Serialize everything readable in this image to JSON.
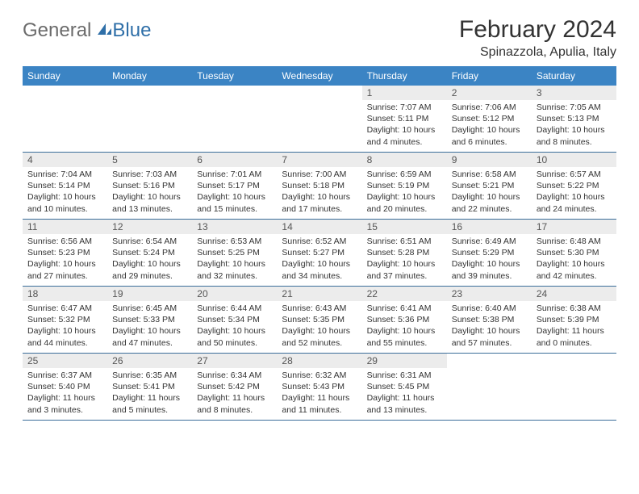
{
  "brand": {
    "general": "General",
    "blue": "Blue"
  },
  "title": "February 2024",
  "location": "Spinazzola, Apulia, Italy",
  "colors": {
    "header_bg": "#3b84c4",
    "header_text": "#ffffff",
    "daynum_bg": "#ececec",
    "border": "#3b6e9a",
    "logo_general": "#6b6b6b",
    "logo_blue": "#2f6fa8"
  },
  "weekdays": [
    "Sunday",
    "Monday",
    "Tuesday",
    "Wednesday",
    "Thursday",
    "Friday",
    "Saturday"
  ],
  "weeks": [
    [
      null,
      null,
      null,
      null,
      {
        "n": "1",
        "sr": "Sunrise: 7:07 AM",
        "ss": "Sunset: 5:11 PM",
        "dl1": "Daylight: 10 hours",
        "dl2": "and 4 minutes."
      },
      {
        "n": "2",
        "sr": "Sunrise: 7:06 AM",
        "ss": "Sunset: 5:12 PM",
        "dl1": "Daylight: 10 hours",
        "dl2": "and 6 minutes."
      },
      {
        "n": "3",
        "sr": "Sunrise: 7:05 AM",
        "ss": "Sunset: 5:13 PM",
        "dl1": "Daylight: 10 hours",
        "dl2": "and 8 minutes."
      }
    ],
    [
      {
        "n": "4",
        "sr": "Sunrise: 7:04 AM",
        "ss": "Sunset: 5:14 PM",
        "dl1": "Daylight: 10 hours",
        "dl2": "and 10 minutes."
      },
      {
        "n": "5",
        "sr": "Sunrise: 7:03 AM",
        "ss": "Sunset: 5:16 PM",
        "dl1": "Daylight: 10 hours",
        "dl2": "and 13 minutes."
      },
      {
        "n": "6",
        "sr": "Sunrise: 7:01 AM",
        "ss": "Sunset: 5:17 PM",
        "dl1": "Daylight: 10 hours",
        "dl2": "and 15 minutes."
      },
      {
        "n": "7",
        "sr": "Sunrise: 7:00 AM",
        "ss": "Sunset: 5:18 PM",
        "dl1": "Daylight: 10 hours",
        "dl2": "and 17 minutes."
      },
      {
        "n": "8",
        "sr": "Sunrise: 6:59 AM",
        "ss": "Sunset: 5:19 PM",
        "dl1": "Daylight: 10 hours",
        "dl2": "and 20 minutes."
      },
      {
        "n": "9",
        "sr": "Sunrise: 6:58 AM",
        "ss": "Sunset: 5:21 PM",
        "dl1": "Daylight: 10 hours",
        "dl2": "and 22 minutes."
      },
      {
        "n": "10",
        "sr": "Sunrise: 6:57 AM",
        "ss": "Sunset: 5:22 PM",
        "dl1": "Daylight: 10 hours",
        "dl2": "and 24 minutes."
      }
    ],
    [
      {
        "n": "11",
        "sr": "Sunrise: 6:56 AM",
        "ss": "Sunset: 5:23 PM",
        "dl1": "Daylight: 10 hours",
        "dl2": "and 27 minutes."
      },
      {
        "n": "12",
        "sr": "Sunrise: 6:54 AM",
        "ss": "Sunset: 5:24 PM",
        "dl1": "Daylight: 10 hours",
        "dl2": "and 29 minutes."
      },
      {
        "n": "13",
        "sr": "Sunrise: 6:53 AM",
        "ss": "Sunset: 5:25 PM",
        "dl1": "Daylight: 10 hours",
        "dl2": "and 32 minutes."
      },
      {
        "n": "14",
        "sr": "Sunrise: 6:52 AM",
        "ss": "Sunset: 5:27 PM",
        "dl1": "Daylight: 10 hours",
        "dl2": "and 34 minutes."
      },
      {
        "n": "15",
        "sr": "Sunrise: 6:51 AM",
        "ss": "Sunset: 5:28 PM",
        "dl1": "Daylight: 10 hours",
        "dl2": "and 37 minutes."
      },
      {
        "n": "16",
        "sr": "Sunrise: 6:49 AM",
        "ss": "Sunset: 5:29 PM",
        "dl1": "Daylight: 10 hours",
        "dl2": "and 39 minutes."
      },
      {
        "n": "17",
        "sr": "Sunrise: 6:48 AM",
        "ss": "Sunset: 5:30 PM",
        "dl1": "Daylight: 10 hours",
        "dl2": "and 42 minutes."
      }
    ],
    [
      {
        "n": "18",
        "sr": "Sunrise: 6:47 AM",
        "ss": "Sunset: 5:32 PM",
        "dl1": "Daylight: 10 hours",
        "dl2": "and 44 minutes."
      },
      {
        "n": "19",
        "sr": "Sunrise: 6:45 AM",
        "ss": "Sunset: 5:33 PM",
        "dl1": "Daylight: 10 hours",
        "dl2": "and 47 minutes."
      },
      {
        "n": "20",
        "sr": "Sunrise: 6:44 AM",
        "ss": "Sunset: 5:34 PM",
        "dl1": "Daylight: 10 hours",
        "dl2": "and 50 minutes."
      },
      {
        "n": "21",
        "sr": "Sunrise: 6:43 AM",
        "ss": "Sunset: 5:35 PM",
        "dl1": "Daylight: 10 hours",
        "dl2": "and 52 minutes."
      },
      {
        "n": "22",
        "sr": "Sunrise: 6:41 AM",
        "ss": "Sunset: 5:36 PM",
        "dl1": "Daylight: 10 hours",
        "dl2": "and 55 minutes."
      },
      {
        "n": "23",
        "sr": "Sunrise: 6:40 AM",
        "ss": "Sunset: 5:38 PM",
        "dl1": "Daylight: 10 hours",
        "dl2": "and 57 minutes."
      },
      {
        "n": "24",
        "sr": "Sunrise: 6:38 AM",
        "ss": "Sunset: 5:39 PM",
        "dl1": "Daylight: 11 hours",
        "dl2": "and 0 minutes."
      }
    ],
    [
      {
        "n": "25",
        "sr": "Sunrise: 6:37 AM",
        "ss": "Sunset: 5:40 PM",
        "dl1": "Daylight: 11 hours",
        "dl2": "and 3 minutes."
      },
      {
        "n": "26",
        "sr": "Sunrise: 6:35 AM",
        "ss": "Sunset: 5:41 PM",
        "dl1": "Daylight: 11 hours",
        "dl2": "and 5 minutes."
      },
      {
        "n": "27",
        "sr": "Sunrise: 6:34 AM",
        "ss": "Sunset: 5:42 PM",
        "dl1": "Daylight: 11 hours",
        "dl2": "and 8 minutes."
      },
      {
        "n": "28",
        "sr": "Sunrise: 6:32 AM",
        "ss": "Sunset: 5:43 PM",
        "dl1": "Daylight: 11 hours",
        "dl2": "and 11 minutes."
      },
      {
        "n": "29",
        "sr": "Sunrise: 6:31 AM",
        "ss": "Sunset: 5:45 PM",
        "dl1": "Daylight: 11 hours",
        "dl2": "and 13 minutes."
      },
      null,
      null
    ]
  ]
}
